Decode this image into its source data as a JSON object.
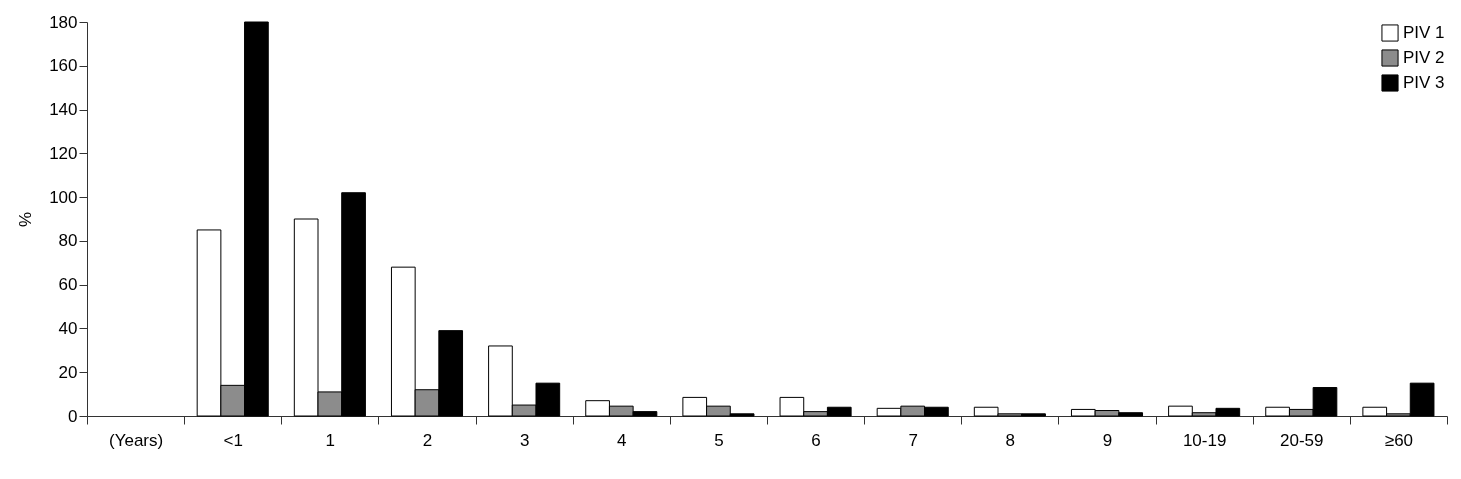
{
  "chart_data": {
    "type": "bar",
    "ylabel": "%",
    "categories": [
      "(Years)",
      "<1",
      "1",
      "2",
      "3",
      "4",
      "5",
      "6",
      "7",
      "8",
      "9",
      "10-19",
      "20-59",
      "≥60"
    ],
    "series": [
      {
        "name": "PIV 1",
        "color": "#ffffff",
        "values": [
          null,
          85,
          90,
          68,
          32,
          7,
          8.5,
          8.5,
          3.5,
          4,
          3,
          4.5,
          4,
          4
        ]
      },
      {
        "name": "PIV 2",
        "color": "#8c8c8c",
        "values": [
          null,
          14,
          11,
          12,
          5,
          4.5,
          4.5,
          2,
          4.5,
          1,
          2.5,
          1.5,
          3,
          1
        ]
      },
      {
        "name": "PIV 3",
        "color": "#000000",
        "values": [
          null,
          180,
          102,
          39,
          15,
          2,
          1,
          4,
          4,
          1,
          1.5,
          3.5,
          13,
          15
        ]
      }
    ],
    "ylim": [
      0,
      180
    ],
    "yticks": [
      0,
      20,
      40,
      60,
      80,
      100,
      120,
      140,
      160,
      180
    ],
    "grid": false,
    "legend": "top right"
  }
}
